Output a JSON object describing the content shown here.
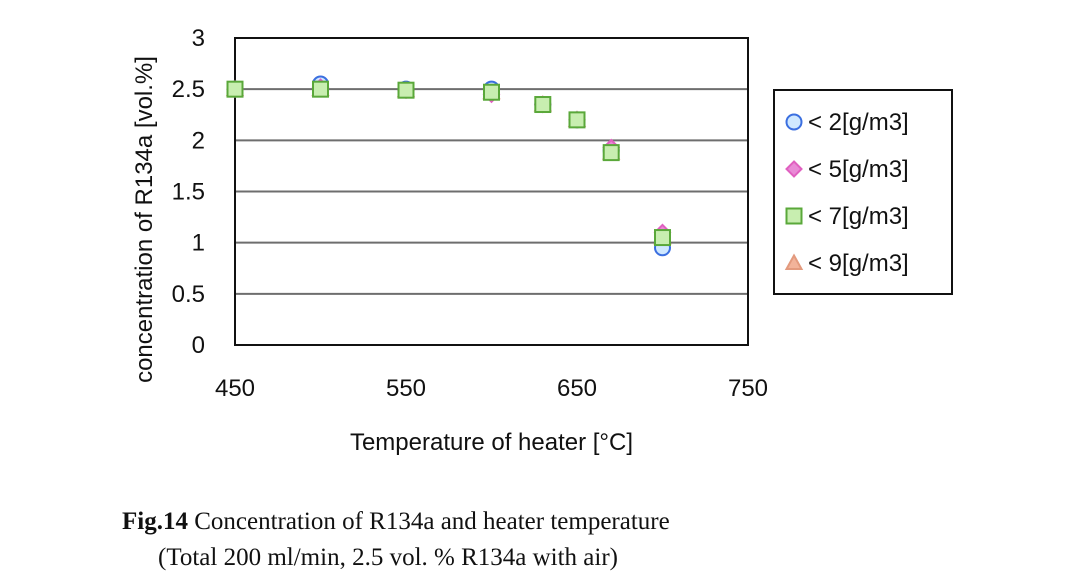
{
  "chart_data": {
    "type": "scatter",
    "xlabel": "Temperature of heater [°C]",
    "ylabel": "concentration of R134a [vol.%]",
    "xlim": [
      450,
      750
    ],
    "ylim": [
      0,
      3
    ],
    "x_ticks": [
      "450",
      "550",
      "650",
      "750"
    ],
    "x_tick_values": [
      450,
      550,
      650,
      750
    ],
    "y_ticks": [
      "0",
      "0.5",
      "1",
      "1.5",
      "2",
      "2.5",
      "3"
    ],
    "y_tick_values": [
      0,
      0.5,
      1,
      1.5,
      2,
      2.5,
      3
    ],
    "grid": "horizontal",
    "legend_position": "right",
    "series": [
      {
        "name": "< 2[g/m3]",
        "marker": "circle",
        "color": "#3b6fe0",
        "fill": "#cfe8ff",
        "x": [
          450,
          500,
          550,
          600,
          630,
          650,
          670,
          700
        ],
        "y": [
          2.5,
          2.55,
          2.5,
          2.5,
          2.35,
          2.2,
          1.9,
          0.95
        ]
      },
      {
        "name": "< 5[g/m3]",
        "marker": "diamond",
        "color": "#e060c0",
        "fill": "#e98ad6",
        "x": [
          450,
          500,
          550,
          600,
          630,
          650,
          670,
          700
        ],
        "y": [
          2.5,
          2.52,
          2.49,
          2.45,
          2.35,
          2.2,
          1.93,
          1.1
        ]
      },
      {
        "name": "< 7[g/m3]",
        "marker": "square",
        "color": "#5aa83a",
        "fill": "#c8eeb0",
        "x": [
          450,
          500,
          550,
          600,
          630,
          650,
          670,
          700
        ],
        "y": [
          2.5,
          2.5,
          2.49,
          2.47,
          2.35,
          2.2,
          1.88,
          1.05
        ]
      },
      {
        "name": "< 9[g/m3]",
        "marker": "triangle",
        "color": "#e39a7e",
        "fill": "#f2b39a",
        "x": [
          450,
          500,
          550,
          600,
          630,
          650,
          670,
          700
        ],
        "y": [
          2.5,
          2.5,
          2.49,
          2.47,
          2.35,
          2.2,
          1.88,
          1.05
        ]
      }
    ]
  },
  "caption": {
    "label": "Fig.14",
    "text": " Concentration of R134a and heater temperature",
    "line2": "(Total 200 ml/min, 2.5 vol. % R134a with air)"
  }
}
